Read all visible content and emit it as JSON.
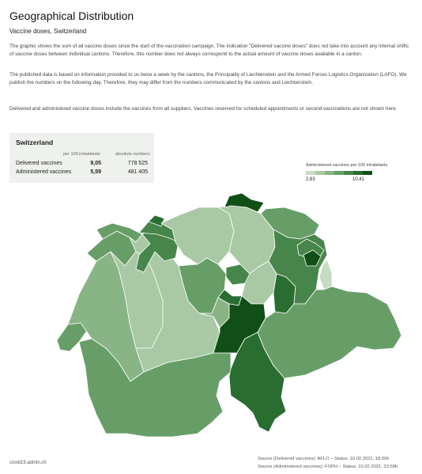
{
  "title": "Geographical Distribution",
  "subtitle": "Vaccine doses, Switzerland",
  "paragraphs": [
    "The graphic shows the sum of all vaccine doses since the start of the vaccination campaign. The indication \"Delivered vaccine doses\" does not take into account any internal shifts of vaccine doses between individual cantons. Therefore, this number does not always correspond to the actual amount of vaccine doses available in a canton.",
    "The published data is based on information provided to us twice a week by the cantons, the Principality of Liechtenstein and the Armed Forces Logistics Organization (LAFO). We publish the numbers on the following day. Therefore, they may differ from the numbers communicated by the cantons and Liechtenstein.",
    "Delivered and administered vaccine doses include the vaccines from all suppliers. Vaccines reserved for scheduled appointments or second vaccinations are not shown here."
  ],
  "summary": {
    "title": "Switzerland",
    "col_per100": "per 100 inhabitants",
    "col_absolute": "absolute numbers",
    "rows": [
      {
        "label": "Delivered vaccines",
        "per100": "9,05",
        "absolute": "778 525"
      },
      {
        "label": "Administered vaccines",
        "per100": "5,59",
        "absolute": "481 405"
      }
    ]
  },
  "legend": {
    "title": "Administered vaccines per 100 inhabitants",
    "min": "2,63",
    "max": "10,41",
    "colors": [
      "#c6dcc2",
      "#a8c9a4",
      "#88b486",
      "#679e68",
      "#47864b",
      "#2a6d30",
      "#104f17"
    ]
  },
  "map": {
    "border_color": "#ffffff",
    "regions": [
      {
        "name": "canton-geneva",
        "fill": "#679e68"
      },
      {
        "name": "canton-vaud",
        "fill": "#88b486"
      },
      {
        "name": "canton-valais",
        "fill": "#679e68"
      },
      {
        "name": "canton-neuchatel",
        "fill": "#679e68"
      },
      {
        "name": "canton-fribourg",
        "fill": "#a8c9a4"
      },
      {
        "name": "canton-bern",
        "fill": "#a8c9a4"
      },
      {
        "name": "canton-jura",
        "fill": "#679e68"
      },
      {
        "name": "canton-solothurn",
        "fill": "#47864b"
      },
      {
        "name": "canton-basel-stadt",
        "fill": "#2a6d30"
      },
      {
        "name": "canton-basel-landschaft",
        "fill": "#47864b"
      },
      {
        "name": "canton-aargau",
        "fill": "#a8c9a4"
      },
      {
        "name": "canton-lucerne",
        "fill": "#679e68"
      },
      {
        "name": "canton-zug",
        "fill": "#47864b"
      },
      {
        "name": "canton-schwyz",
        "fill": "#a8c9a4"
      },
      {
        "name": "canton-obwalden",
        "fill": "#88b486"
      },
      {
        "name": "canton-nidwalden",
        "fill": "#2a6d30"
      },
      {
        "name": "canton-uri",
        "fill": "#104f17"
      },
      {
        "name": "canton-ticino",
        "fill": "#2a6d30"
      },
      {
        "name": "canton-zurich",
        "fill": "#a8c9a4"
      },
      {
        "name": "canton-schaffhausen",
        "fill": "#104f17"
      },
      {
        "name": "canton-thurgau",
        "fill": "#679e68"
      },
      {
        "name": "canton-st-gallen",
        "fill": "#47864b"
      },
      {
        "name": "canton-glarus",
        "fill": "#2a6d30"
      },
      {
        "name": "canton-graubuenden",
        "fill": "#679e68"
      },
      {
        "name": "canton-appenzell-ar",
        "fill": "#47864b"
      },
      {
        "name": "canton-appenzell-ir",
        "fill": "#104f17"
      },
      {
        "name": "liechtenstein",
        "fill": "#c6dcc2"
      }
    ]
  },
  "footer": {
    "site": "covid19.admin.ch",
    "source_delivered": "Source (Delivered vaccines): AFLO – Status: 10.02.2021, 18.00h",
    "source_administered": "Source (Administered vaccines): FOPH – Status: 10.02.2021, 23.59h"
  }
}
